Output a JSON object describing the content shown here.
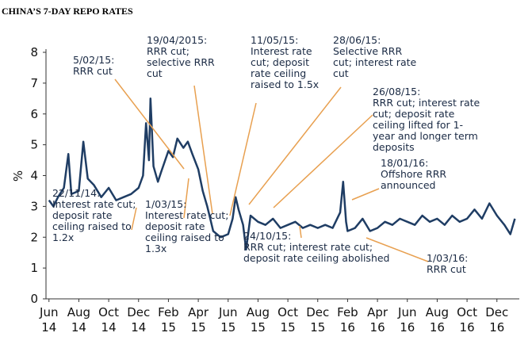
{
  "chart_data": {
    "type": "line",
    "title": "CHINA’S 7-DAY REPO RATES",
    "y_label": "%",
    "xlim": [
      -0.2,
      31.5
    ],
    "ylim": [
      0,
      8
    ],
    "yticks": [
      0,
      1,
      2,
      3,
      4,
      5,
      6,
      7,
      8
    ],
    "xticks": [
      {
        "value": 0,
        "label": [
          "Jun",
          "14"
        ]
      },
      {
        "value": 2,
        "label": [
          "Aug",
          "14"
        ]
      },
      {
        "value": 4,
        "label": [
          "Oct",
          "14"
        ]
      },
      {
        "value": 6,
        "label": [
          "Dec",
          "14"
        ]
      },
      {
        "value": 8,
        "label": [
          "Feb",
          "15"
        ]
      },
      {
        "value": 10,
        "label": [
          "Apr",
          "15"
        ]
      },
      {
        "value": 12,
        "label": [
          "Jun",
          "15"
        ]
      },
      {
        "value": 14,
        "label": [
          "Aug",
          "15"
        ]
      },
      {
        "value": 16,
        "label": [
          "Oct",
          "15"
        ]
      },
      {
        "value": 18,
        "label": [
          "Dec",
          "15"
        ]
      },
      {
        "value": 20,
        "label": [
          "Feb",
          "16"
        ]
      },
      {
        "value": 22,
        "label": [
          "Apr",
          "16"
        ]
      },
      {
        "value": 24,
        "label": [
          "Jun",
          "16"
        ]
      },
      {
        "value": 26,
        "label": [
          "Aug",
          "16"
        ]
      },
      {
        "value": 28,
        "label": [
          "Oct",
          "16"
        ]
      },
      {
        "value": 30,
        "label": [
          "Dec",
          "16"
        ]
      }
    ],
    "color": "#1f3d64",
    "x": [
      0,
      0.3,
      0.6,
      1,
      1.3,
      1.5,
      2,
      2.3,
      2.6,
      3,
      3.5,
      4,
      4.5,
      5,
      5.5,
      6,
      6.3,
      6.5,
      6.7,
      6.8,
      7,
      7.3,
      7.5,
      8,
      8.3,
      8.6,
      9,
      9.3,
      9.6,
      10,
      10.3,
      10.6,
      10.8,
      11,
      11.5,
      12,
      12.3,
      12.5,
      12.7,
      13,
      13.2,
      13.5,
      14,
      14.5,
      15,
      15.5,
      16,
      16.5,
      17,
      17.5,
      18,
      18.5,
      19,
      19.5,
      19.7,
      19.9,
      20,
      20.5,
      21,
      21.5,
      22,
      22.5,
      23,
      23.5,
      24,
      24.5,
      25,
      25.5,
      26,
      26.5,
      27,
      27.5,
      28,
      28.5,
      29,
      29.5,
      30,
      30.5,
      30.9,
      31.2
    ],
    "values": [
      3.2,
      3.0,
      3.3,
      3.6,
      4.7,
      3.4,
      3.5,
      5.1,
      3.9,
      3.7,
      3.3,
      3.6,
      3.2,
      3.3,
      3.4,
      3.6,
      4.0,
      5.7,
      4.5,
      6.5,
      4.3,
      3.8,
      4.1,
      4.8,
      4.6,
      5.2,
      4.9,
      5.1,
      4.7,
      4.2,
      3.5,
      3.0,
      2.6,
      2.2,
      2.0,
      2.1,
      2.6,
      3.3,
      2.9,
      2.4,
      1.6,
      2.7,
      2.5,
      2.4,
      2.6,
      2.3,
      2.4,
      2.5,
      2.3,
      2.4,
      2.3,
      2.4,
      2.3,
      2.8,
      3.8,
      2.5,
      2.2,
      2.3,
      2.6,
      2.2,
      2.3,
      2.5,
      2.4,
      2.6,
      2.5,
      2.4,
      2.7,
      2.5,
      2.6,
      2.4,
      2.7,
      2.5,
      2.6,
      2.9,
      2.6,
      3.1,
      2.7,
      2.4,
      2.1,
      2.6
    ],
    "annotations": [
      {
        "lines": [
          "5/02/15:",
          "RRR cut"
        ]
      },
      {
        "lines": [
          "19/04/2015:",
          "RRR cut;",
          "selective RRR",
          "cut"
        ]
      },
      {
        "lines": [
          "11/05/15:",
          "Interest rate",
          "cut; deposit",
          "rate ceiling",
          "raised to 1.5x"
        ]
      },
      {
        "lines": [
          "28/06/15:",
          "Selective RRR",
          "cut; interest rate",
          "cut"
        ]
      },
      {
        "lines": [
          "26/08/15:",
          "RRR cut; interest rate",
          "cut; deposit rate",
          "ceiling lifted for 1-",
          "year and longer term",
          "deposits"
        ]
      },
      {
        "lines": [
          "18/01/16:",
          "Offshore RRR",
          "announced"
        ]
      },
      {
        "lines": [
          "22/11/14:",
          "Interest rate cut;",
          "deposit rate",
          "ceiling raised to",
          "1.2x"
        ]
      },
      {
        "lines": [
          "1/03/15:",
          "Interest rate cut;",
          "deposit rate",
          "ceiling raised to",
          "1.3x"
        ]
      },
      {
        "lines": [
          "24/10/15:",
          "RRR cut; interest rate cut;",
          "deposit rate ceiling abolished"
        ]
      },
      {
        "lines": [
          "1/03/16:",
          "RRR cut"
        ]
      }
    ]
  }
}
